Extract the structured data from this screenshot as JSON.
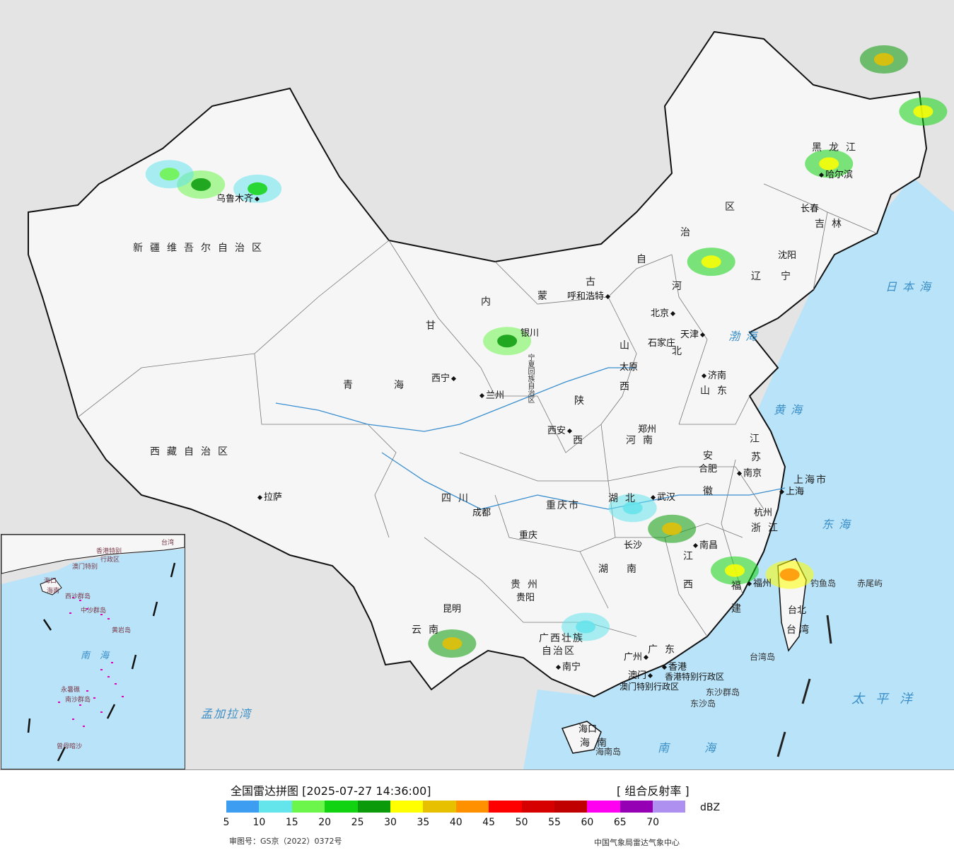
{
  "legend": {
    "title": "全国雷达拼图 [2025-07-27 14:36:00]",
    "product": "[ 组合反射率 ]",
    "unit": "dBZ",
    "ticks": [
      "5",
      "10",
      "15",
      "20",
      "25",
      "30",
      "35",
      "40",
      "45",
      "50",
      "55",
      "60",
      "65",
      "70"
    ],
    "colors": [
      "#3d9df0",
      "#64e4eb",
      "#6cf54a",
      "#12d312",
      "#0a9a0a",
      "#ffff00",
      "#e7c000",
      "#ff9000",
      "#ff0000",
      "#d60000",
      "#c00000",
      "#ff00f0",
      "#9600b4",
      "#ad90f0"
    ],
    "approval": "审图号：GS京（2022）0372号",
    "agency": "中国气象局雷达气象中心"
  },
  "regions": {
    "xinjiang": "新疆维吾尔自治区",
    "xizang": "西藏自治区",
    "qinghai_1": "青",
    "qinghai_2": "海",
    "gansu": "甘",
    "neimenggu_1": "内",
    "neimenggu_2": "蒙",
    "neimenggu_3": "古",
    "neimenggu_4": "自",
    "neimenggu_5": "治",
    "neimenggu_6": "区",
    "heilongjiang": "黑龙江",
    "jilin": "吉林",
    "liaoning_1": "辽",
    "liaoning_2": "宁",
    "hebei_1": "河",
    "hebei_2": "北",
    "shanxi_1": "山",
    "shanxi_2": "西",
    "shandong": "山东",
    "henan": "河南",
    "shaanxi_1": "陕",
    "shaanxi_2": "西",
    "sichuan": "四川",
    "chongqing": "重庆市",
    "hubei": "湖北",
    "hunan_1": "湖",
    "hunan_2": "南",
    "anhui_1": "安",
    "anhui_2": "徽",
    "jiangsu_1": "江",
    "jiangsu_2": "苏",
    "zhejiang": "浙江",
    "jiangxi_1": "江",
    "jiangxi_2": "西",
    "fujian_1": "福",
    "fujian_2": "建",
    "guizhou": "贵州",
    "yunnan": "云南",
    "guangxi": "广西壮族",
    "guangxi_2": "自治区",
    "guangdong": "广东",
    "hainan": "海南",
    "taiwan": "台湾",
    "ningxia": "宁夏回族自治区",
    "shanghai": "上海市",
    "hk": "香港特别行政区",
    "macau": "澳门特别行政区"
  },
  "cities": {
    "urumqi": "乌鲁木齐",
    "lhasa": "拉萨",
    "xining": "西宁",
    "lanzhou": "兰州",
    "yinchuan": "银川",
    "hohhot": "呼和浩特",
    "beijing": "北京",
    "tianjin": "天津",
    "shijiazhuang": "石家庄",
    "taiyuan": "太原",
    "jinan": "济南",
    "zhengzhou": "郑州",
    "xian": "西安",
    "harbin": "哈尔滨",
    "changchun": "长春",
    "shenyang": "沈阳",
    "chengdu": "成都",
    "chongqing": "重庆",
    "wuhan": "武汉",
    "hefei": "合肥",
    "nanjing": "南京",
    "shanghai": "上海",
    "hangzhou": "杭州",
    "nanchang": "南昌",
    "changsha": "长沙",
    "fuzhou": "福州",
    "guiyang": "贵阳",
    "kunming": "昆明",
    "nanning": "南宁",
    "guangzhou": "广州",
    "hongkong": "香港",
    "macau": "澳门",
    "haikou": "海口",
    "taibei": "台北"
  },
  "seas": {
    "bohai": "渤海",
    "huanghai": "黄海",
    "donghai": "东海",
    "nanhai": "南海",
    "riben": "日本海",
    "taipingyang": "太平洋",
    "mengjiala": "孟加拉湾"
  },
  "islands": {
    "diaoyu": "钓鱼岛",
    "chiwei": "赤尾屿",
    "taiwandao": "台湾岛",
    "dongsha": "东沙群岛",
    "dongshadao": "东沙岛",
    "hainandao": "海南岛"
  },
  "inset": {
    "nanhai": "南海",
    "xisha": "西沙群岛",
    "zhongsha": "中沙群岛",
    "huangyan": "黄岩岛",
    "nansha": "南沙群岛",
    "zengmu": "曾母暗沙",
    "yongshu": "永暑礁",
    "hk": "香港特别",
    "macau": "澳门特别",
    "hk2": "行政区",
    "taiwan": "台湾",
    "haikou": "海口",
    "hainan": "海南"
  },
  "echoes": [
    {
      "lon": 87.6,
      "lat": 43.8,
      "dbz": 20
    },
    {
      "lon": 84.0,
      "lat": 44.0,
      "dbz": 25
    },
    {
      "lon": 82.0,
      "lat": 44.5,
      "dbz": 15
    },
    {
      "lon": 127.5,
      "lat": 50.0,
      "dbz": 35
    },
    {
      "lon": 130.0,
      "lat": 47.5,
      "dbz": 30
    },
    {
      "lon": 124.0,
      "lat": 45.0,
      "dbz": 30
    },
    {
      "lon": 116.5,
      "lat": 40.3,
      "dbz": 30
    },
    {
      "lon": 114.0,
      "lat": 27.5,
      "dbz": 35
    },
    {
      "lon": 118.0,
      "lat": 25.5,
      "dbz": 30
    },
    {
      "lon": 121.5,
      "lat": 25.3,
      "dbz": 40
    },
    {
      "lon": 100.0,
      "lat": 22.0,
      "dbz": 35
    },
    {
      "lon": 108.5,
      "lat": 22.8,
      "dbz": 10
    },
    {
      "lon": 111.5,
      "lat": 28.5,
      "dbz": 10
    },
    {
      "lon": 103.5,
      "lat": 36.5,
      "dbz": 25
    }
  ]
}
